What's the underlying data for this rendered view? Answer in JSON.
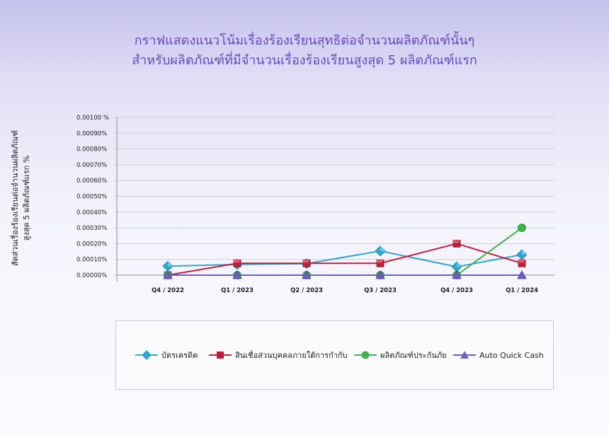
{
  "title_line1": "กราฟแสดงแนวโน้มเรื่องร้องเรียนสุทธิต่อจำนวนผลิตภัณฑ์นั้นๆ",
  "title_line2": "สำหรับผลิตภัณฑ์ที่มีจำนวนเรื่องร้องเรียนสูงสุด 5 ผลิตภัณฑ์แรก",
  "ylabel_line1": "สัดส่วนเรื่องร้องเรียนต่อจำนวนผลิตภัณฑ์",
  "ylabel_line2": "สูงสุด 5 ผลิตภัณฑ์แรก   %",
  "chart_data": {
    "type": "line",
    "categories": [
      "Q4 / 2022",
      "Q1 / 2023",
      "Q2 / 2023",
      "Q3 / 2023",
      "Q4 / 2023",
      "Q1 / 2024"
    ],
    "ylim": [
      0,
      0.001
    ],
    "yticks": [
      0,
      0.0001,
      0.0002,
      0.0003,
      0.0004,
      0.0005,
      0.0006,
      0.0007,
      0.0008,
      0.0009,
      0.001
    ],
    "ytick_labels": [
      "0.00000%",
      "0.00010%",
      "0.00020%",
      "0.00030%",
      "0.00040%",
      "0.00050%",
      "0.00060%",
      "0.00070%",
      "0.00080%",
      "0.00090%",
      "0.00100 %"
    ],
    "grid": true,
    "legend_position": "bottom",
    "series": [
      {
        "name": "บัตรเครดิต",
        "color": "#2ea8cf",
        "marker": "diamond",
        "values": [
          5.7e-05,
          6.8e-05,
          7.3e-05,
          0.000153,
          5.3e-05,
          0.00013
        ]
      },
      {
        "name": "สินเชื่อส่วนบุคคลภายใต้การกำกับ",
        "color": "#c21e3a",
        "marker": "square",
        "values": [
          0.0,
          7.5e-05,
          7.5e-05,
          7.5e-05,
          0.0002,
          7.5e-05
        ]
      },
      {
        "name": "ผลิตภัณฑ์ประกันภัย",
        "color": "#3cb44a",
        "marker": "circle",
        "values": [
          0.0,
          0.0,
          0.0,
          0.0,
          0.0,
          0.0003
        ]
      },
      {
        "name": "Auto Quick Cash",
        "color": "#6f5cc8",
        "marker": "triangle",
        "values": [
          0.0,
          0.0,
          0.0,
          0.0,
          0.0,
          0.0
        ]
      }
    ]
  }
}
